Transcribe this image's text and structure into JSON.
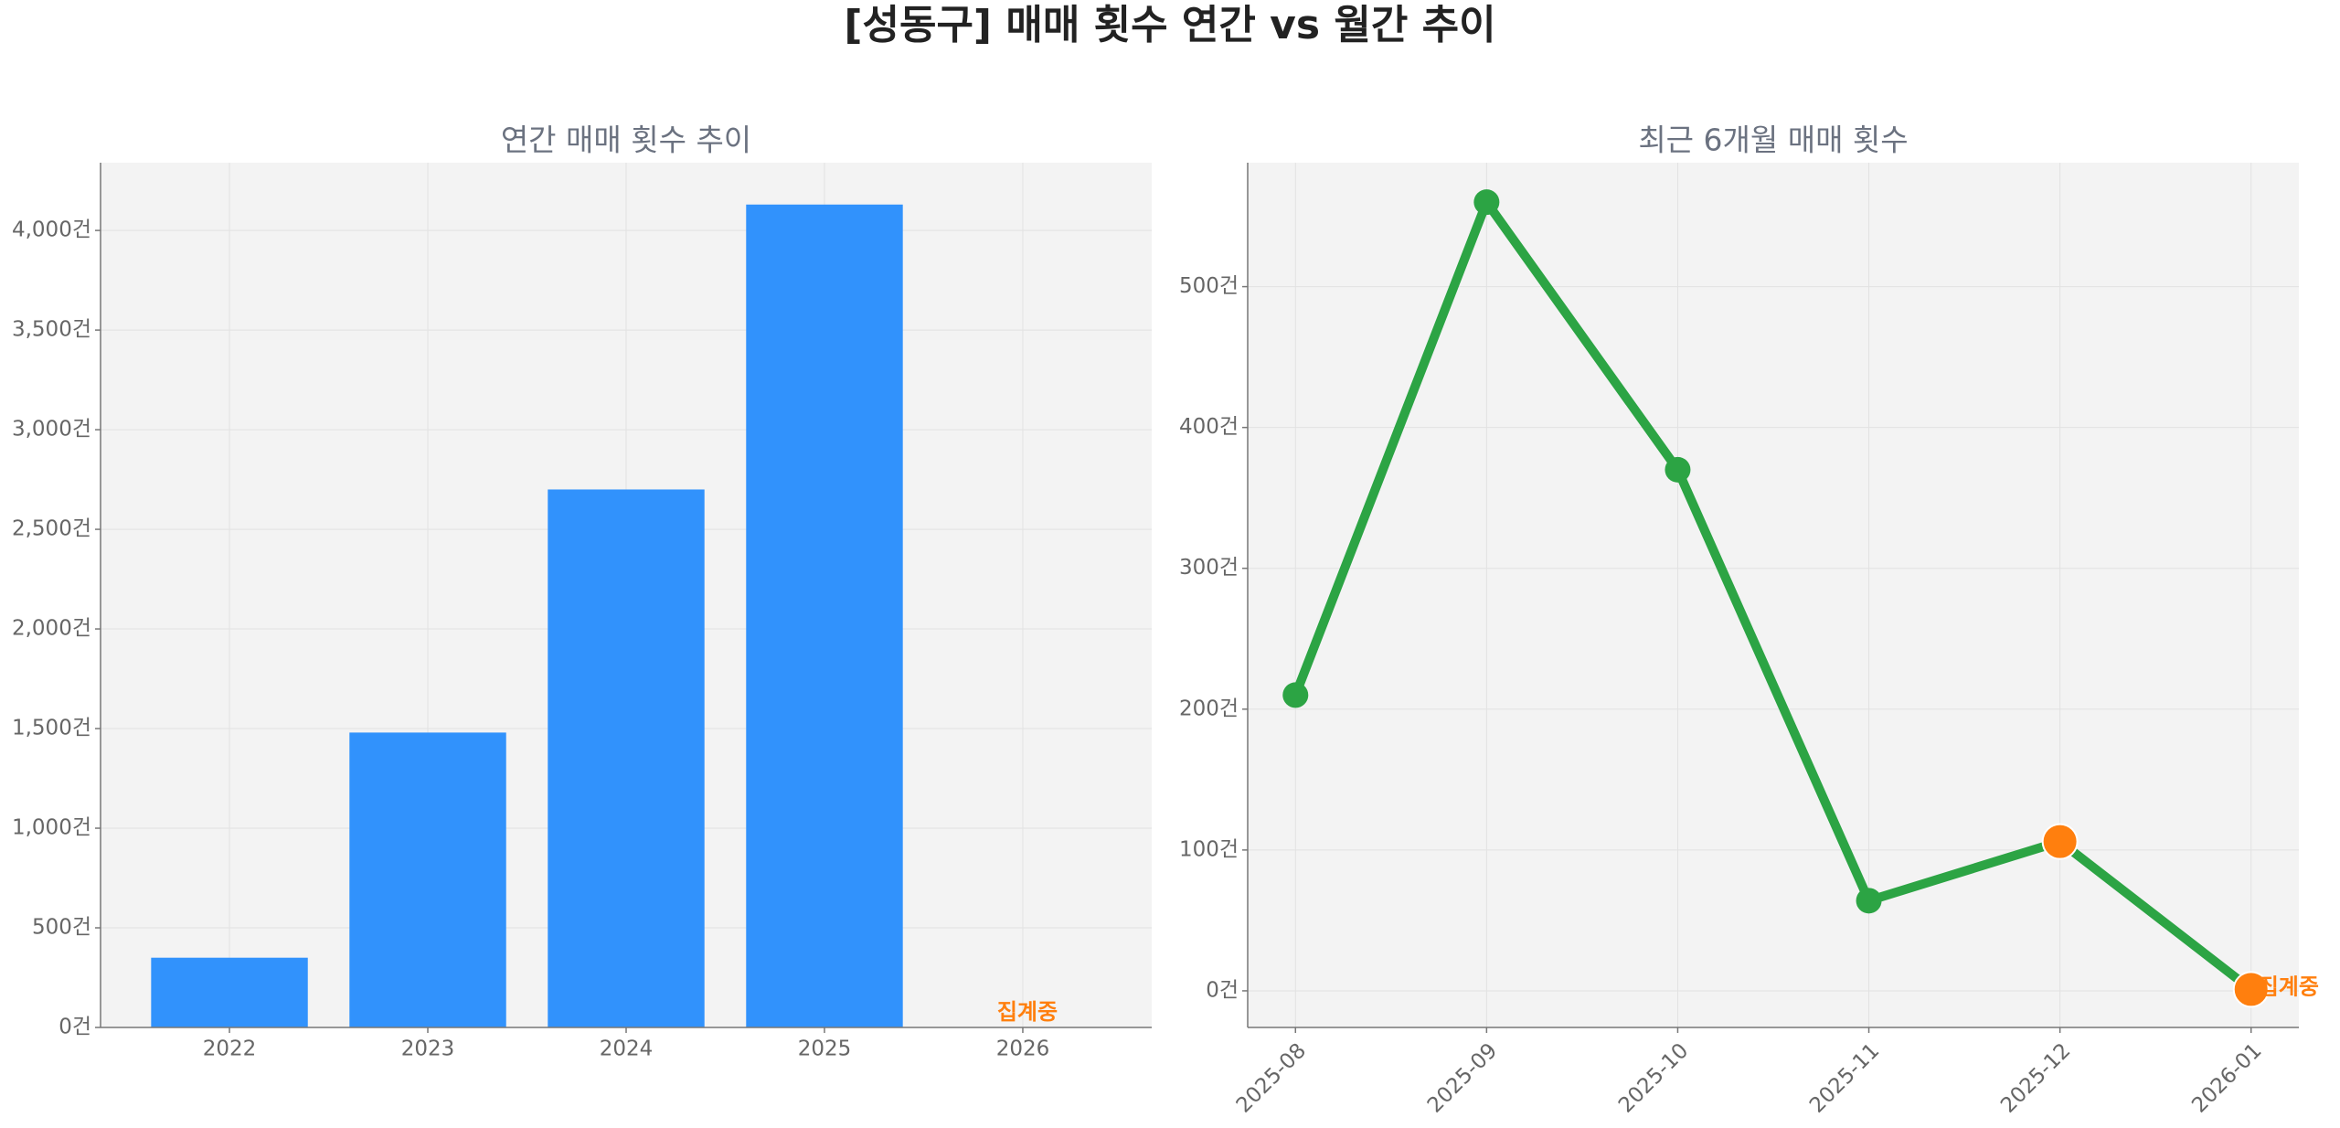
{
  "title": "[성동구] 매매 횟수 연간 vs 월간 추이",
  "chart_data": [
    {
      "type": "bar",
      "title": "연간 매매 횟수 추이",
      "categories": [
        "2022",
        "2023",
        "2024",
        "2025",
        "2026"
      ],
      "values": [
        350,
        1480,
        2700,
        4130,
        0
      ],
      "color": "#3192fc",
      "ylim": [
        0,
        4340
      ],
      "yticks": [
        {
          "value": 0,
          "label": "0건"
        },
        {
          "value": 500,
          "label": "500건"
        },
        {
          "value": 1000,
          "label": "1,000건"
        },
        {
          "value": 1500,
          "label": "1,500건"
        },
        {
          "value": 2000,
          "label": "2,000건"
        },
        {
          "value": 2500,
          "label": "2,500건"
        },
        {
          "value": 3000,
          "label": "3,000건"
        },
        {
          "value": 3500,
          "label": "3,500건"
        },
        {
          "value": 4000,
          "label": "4,000건"
        }
      ],
      "grid": true,
      "annotation": {
        "text": "집계중",
        "color": "#ff7f0e"
      }
    },
    {
      "type": "line",
      "title": "최근 6개월 매매 횟수",
      "x": [
        "2025-08",
        "2025-09",
        "2025-10",
        "2025-11",
        "2025-12",
        "2026-01"
      ],
      "values": [
        210,
        560,
        370,
        64,
        106,
        1
      ],
      "color": "#2ca444",
      "marker_colors": [
        "#2ca444",
        "#2ca444",
        "#2ca444",
        "#2ca444",
        "#ff7f0e",
        "#ff7f0e"
      ],
      "ylim": [
        -26,
        588
      ],
      "yticks": [
        {
          "value": 0,
          "label": "0건"
        },
        {
          "value": 100,
          "label": "100건"
        },
        {
          "value": 200,
          "label": "200건"
        },
        {
          "value": 300,
          "label": "300건"
        },
        {
          "value": 400,
          "label": "400건"
        },
        {
          "value": 500,
          "label": "500건"
        }
      ],
      "grid": true,
      "annotation": {
        "text": "집계중",
        "color": "#ff7f0e"
      }
    }
  ]
}
